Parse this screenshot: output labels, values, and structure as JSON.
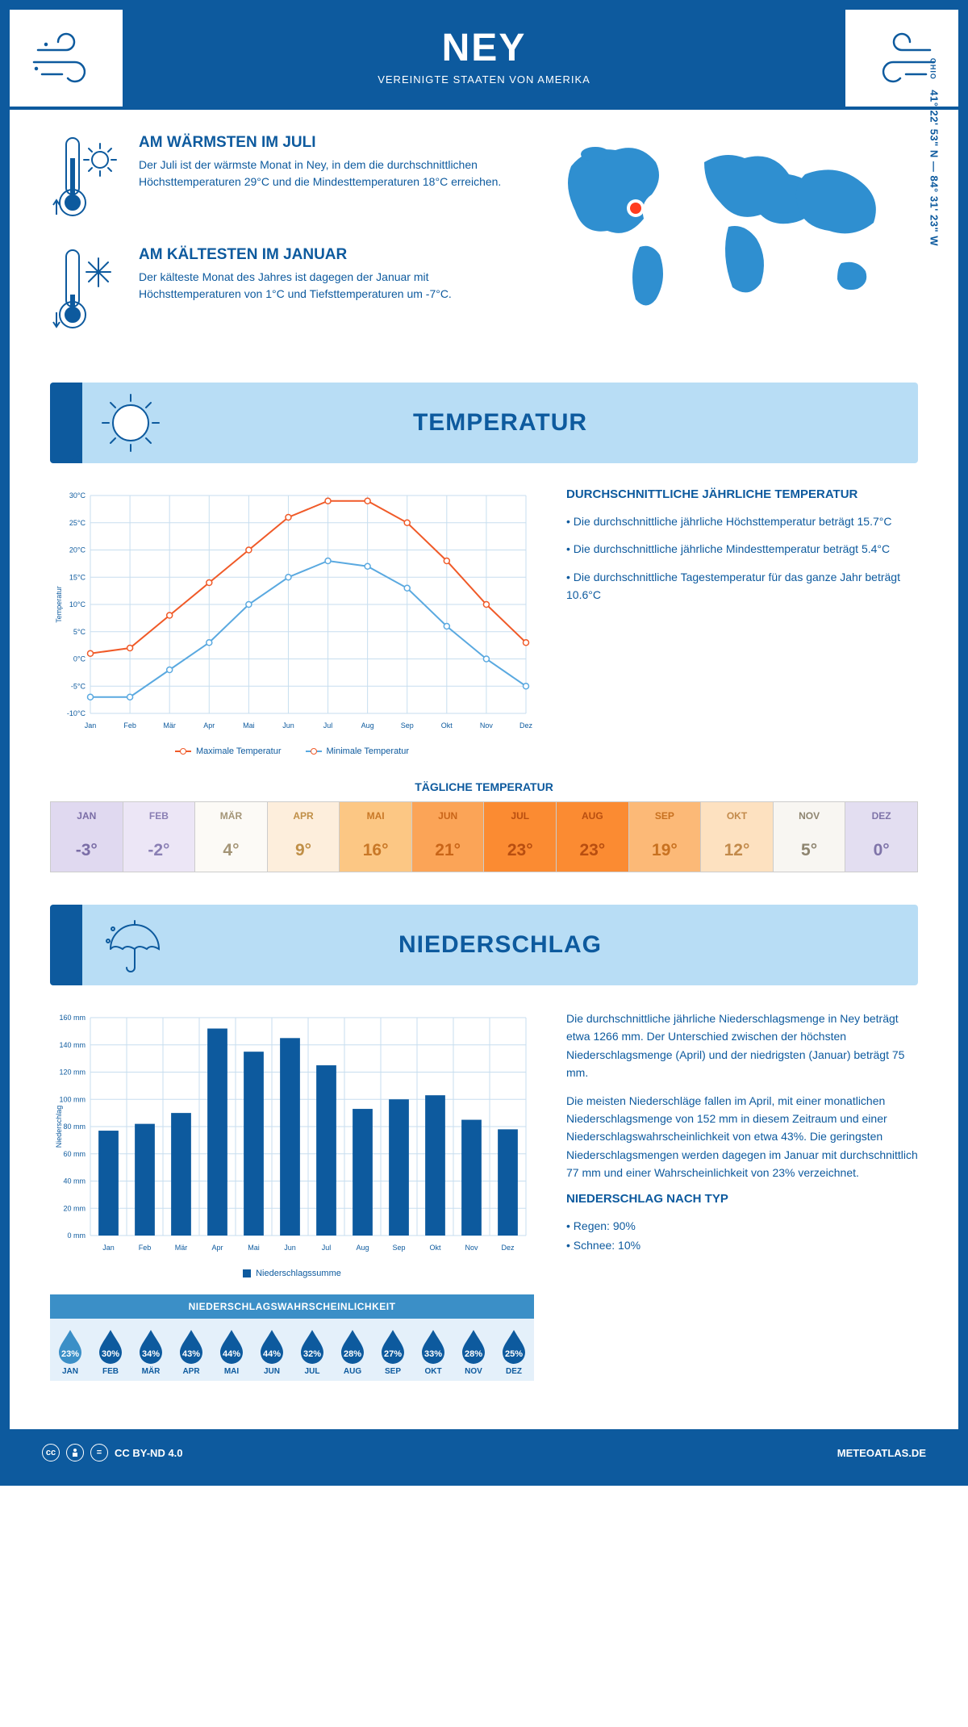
{
  "header": {
    "title": "NEY",
    "subtitle": "VEREINIGTE STAATEN VON AMERIKA"
  },
  "coords": {
    "text": "41° 22' 53\" N — 84° 31' 23\" W",
    "region": "OHIO"
  },
  "map_marker": {
    "cx_pct": 25,
    "cy_pct": 40,
    "color": "#ff3b1f"
  },
  "intro": {
    "warm": {
      "title": "AM WÄRMSTEN IM JULI",
      "text": "Der Juli ist der wärmste Monat in Ney, in dem die durchschnittlichen Höchsttemperaturen 29°C und die Mindesttemperaturen 18°C erreichen."
    },
    "cold": {
      "title": "AM KÄLTESTEN IM JANUAR",
      "text": "Der kälteste Monat des Jahres ist dagegen der Januar mit Höchsttemperaturen von 1°C und Tiefsttemperaturen um -7°C."
    }
  },
  "colors": {
    "primary": "#0d5a9e",
    "light": "#b8ddf5",
    "midblue": "#3b8fc7",
    "orange": "#f05a28",
    "lightblue": "#5aa9e0"
  },
  "temp_section": {
    "title": "TEMPERATUR",
    "chart": {
      "months": [
        "Jan",
        "Feb",
        "Mär",
        "Apr",
        "Mai",
        "Jun",
        "Jul",
        "Aug",
        "Sep",
        "Okt",
        "Nov",
        "Dez"
      ],
      "max_series": {
        "label": "Maximale Temperatur",
        "color": "#f05a28",
        "values": [
          1,
          2,
          8,
          14,
          20,
          26,
          29,
          29,
          25,
          18,
          10,
          3
        ]
      },
      "min_series": {
        "label": "Minimale Temperatur",
        "color": "#5aa9e0",
        "values": [
          -7,
          -7,
          -2,
          3,
          10,
          15,
          18,
          17,
          13,
          6,
          0,
          -5
        ]
      },
      "ylim": [
        -10,
        30
      ],
      "ytick_step": 5,
      "ylabel": "Temperatur",
      "grid_color": "#c7deef",
      "background": "#ffffff",
      "marker": "circle",
      "line_width": 2
    },
    "info": {
      "title": "DURCHSCHNITTLICHE JÄHRLICHE TEMPERATUR",
      "b1": "• Die durchschnittliche jährliche Höchsttemperatur beträgt 15.7°C",
      "b2": "• Die durchschnittliche jährliche Mindesttemperatur beträgt 5.4°C",
      "b3": "• Die durchschnittliche Tagestemperatur für das ganze Jahr beträgt 10.6°C"
    },
    "daily": {
      "title": "TÄGLICHE TEMPERATUR",
      "months": [
        "JAN",
        "FEB",
        "MÄR",
        "APR",
        "MAI",
        "JUN",
        "JUL",
        "AUG",
        "SEP",
        "OKT",
        "NOV",
        "DEZ"
      ],
      "values": [
        "-3°",
        "-2°",
        "4°",
        "9°",
        "16°",
        "21°",
        "23°",
        "23°",
        "19°",
        "12°",
        "5°",
        "0°"
      ],
      "cell_bg": [
        "#e0d9f0",
        "#ece6f6",
        "#fcfaf6",
        "#fdeedc",
        "#fcc784",
        "#fba457",
        "#fb8b32",
        "#fb8b32",
        "#fcb977",
        "#fde1c0",
        "#f8f6f2",
        "#e3def1"
      ],
      "cell_fg": [
        "#7a6da6",
        "#8a7fb4",
        "#a49577",
        "#c08f47",
        "#c97827",
        "#c96518",
        "#b84e10",
        "#b84e10",
        "#c87120",
        "#c28a4b",
        "#8e8570",
        "#7f74a9"
      ]
    }
  },
  "precip_section": {
    "title": "NIEDERSCHLAG",
    "chart": {
      "months": [
        "Jan",
        "Feb",
        "Mär",
        "Apr",
        "Mai",
        "Jun",
        "Jul",
        "Aug",
        "Sep",
        "Okt",
        "Nov",
        "Dez"
      ],
      "values": [
        77,
        82,
        90,
        152,
        135,
        145,
        125,
        93,
        100,
        103,
        85,
        78
      ],
      "ylim": [
        0,
        160
      ],
      "ytick_step": 20,
      "ylabel": "Niederschlag",
      "bar_color": "#0d5a9e",
      "grid_color": "#c7deef",
      "legend_label": "Niederschlagssumme",
      "bar_width": 0.55
    },
    "info": {
      "p1": "Die durchschnittliche jährliche Niederschlagsmenge in Ney beträgt etwa 1266 mm. Der Unterschied zwischen der höchsten Niederschlagsmenge (April) und der niedrigsten (Januar) beträgt 75 mm.",
      "p2": "Die meisten Niederschläge fallen im April, mit einer monatlichen Niederschlagsmenge von 152 mm in diesem Zeitraum und einer Niederschlagswahrscheinlichkeit von etwa 43%. Die geringsten Niederschlagsmengen werden dagegen im Januar mit durchschnittlich 77 mm und einer Wahrscheinlichkeit von 23% verzeichnet.",
      "type_title": "NIEDERSCHLAG NACH TYP",
      "t1": "• Regen: 90%",
      "t2": "• Schnee: 10%"
    },
    "prob": {
      "title": "NIEDERSCHLAGSWAHRSCHEINLICHKEIT",
      "months": [
        "JAN",
        "FEB",
        "MÄR",
        "APR",
        "MAI",
        "JUN",
        "JUL",
        "AUG",
        "SEP",
        "OKT",
        "NOV",
        "DEZ"
      ],
      "values": [
        "23%",
        "30%",
        "34%",
        "43%",
        "44%",
        "44%",
        "32%",
        "28%",
        "27%",
        "33%",
        "28%",
        "25%"
      ],
      "drop_colors": [
        "#3b8fc7",
        "#0d5a9e",
        "#0d5a9e",
        "#0d5a9e",
        "#0d5a9e",
        "#0d5a9e",
        "#0d5a9e",
        "#0d5a9e",
        "#0d5a9e",
        "#0d5a9e",
        "#0d5a9e",
        "#0d5a9e"
      ]
    }
  },
  "footer": {
    "license": "CC BY-ND 4.0",
    "brand": "METEOATLAS.DE"
  }
}
